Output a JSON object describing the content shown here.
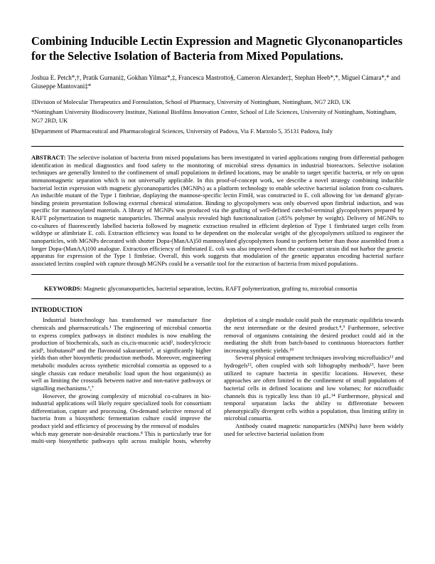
{
  "title": "Combining Inducible Lectin Expression and Magnetic Glyconanoparticles for the Selective Isolation of Bacteria from Mixed Populations.",
  "authors": "Joshua E. Petch*,†, Pratik Gurnani‡, Gokhan Yilmaz*,‡, Francesca Mastrotto§, Cameron Alexander‡, Stephan Heeb*,*, Miguel Cámara*,* and Giuseppe Mantovani‡*",
  "affiliations": [
    "‡Division of Molecular Therapeutics and Formulation, School of Pharmacy, University of Nottingham, Nottingham, NG7 2RD, UK",
    "*Nottingham University Biodiscovery Institute, National Biofilms Innovation Centre, School of Life Sciences, University of Nottingham, Nottingham, NG7 2RD, UK",
    "§Department of Pharmaceutical and Pharmacological Sciences, University of Padova, Via F. Marzolo 5, 35131 Padova, Italy"
  ],
  "abstract_label": "ABSTRACT:",
  "abstract": "The selective isolation of bacteria from mixed populations has been investigated in varied applications ranging from differential pathogen identification in medical diagnostics and food safety to the monitoring of microbial stress dynamics in industrial bioreactors. Selective isolation techniques are generally limited to the confinement of small populations in defined locations, may be unable to target specific bacteria, or rely on upon immunomagnetic separation which is not universally applicable. In this proof-of-concept work, we describe a novel strategy combining inducible bacterial lectin expression with magnetic glyconanoparticles (MGNPs) as a platform technology to enable selective bacterial isolation from co-cultures. An inducible mutant of the Type 1 fimbriae, displaying the mannose-specific lectin FimH, was constructed in E. coli allowing for 'on demand' glycan-binding protein presentation following external chemical stimulation. Binding to glycopolymers was only observed upon fimbrial induction, and was specific for mannosylated materials. A library of MGNPs was produced via the grafting of well-defined catechol-terminal glycopolymers prepared by RAFT polymerization to magnetic nanoparticles. Thermal analysis revealed high functionalization (≥85% polymer by weight). Delivery of MGNPs to co-cultures of fluorescently labelled bacteria followed by magnetic extraction resulted in efficient depletion of Type 1 fimbriated target cells from wildtype or afimbriate E. coli. Extraction efficiency was found to be dependent on the molecular weight of the glycopolymers utilized to engineer the nanoparticles, with MGNPs decorated with shorter Dopa-(ManAA)50 mannosylated glycopolymers found to perform better than those assembled from a longer Dopa-(ManAA)100 analogue. Extraction efficiency of fimbriated E. coli was also improved when the counterpart strain did not harbor the genetic apparatus for expression of the Type 1 fimbriae. Overall, this work suggests that modulation of the genetic apparatus encoding bacterial surface associated lectins coupled with capture through MGNPs could be a versatile tool for the extraction of bacteria from mixed populations.",
  "keywords_label": "KEYWORDS:",
  "keywords": "Magnetic glyconanoparticles, bacterial separation, lectins, RAFT polymerization, grafting to, microbial consortia",
  "intro_head": "INTRODUCTION",
  "intro_p1": "Industrial biotechnology has transformed we manufacture fine chemicals and pharmaceuticals.¹ The engineering of microbial consortia to express complex pathways in distinct modules is now enabling the production of biochemicals, such as cis,cis-muconic acid², isodecylcrocic acid³, biobutanol⁴ and the flavonoid sakuranetin⁵, at significantly higher yields than other biosynthetic production methods. Moreover, engineering metabolic modules across synthetic microbial consortia as opposed to a single chassis can reduce metabolic load upon the host organism(s) as well as limiting the crosstalk between native and non-native pathways or signalling mechanisms.⁶,⁷",
  "intro_p2": "However, the growing complexity of microbial co-cultures in bio-industrial applications will likely require specialized tools for consortium differentiation, capture and processing. On-demand selective removal of bacteria from a biosynthetic fermentation culture could improve the product yield and efficiency of processing by the removal of modules",
  "intro_p3": "which may generate non-desirable reactions.⁸ This is particularly true for multi-step biosynthetic pathways split across multiple hosts, whereby depletion of a single module could push the enzymatic equilibria towards the next intermediate or the desired product.⁸,⁹ Furthermore, selective removal of organisms containing the desired product could aid in the mediating the shift from batch-based to continuous bioreactors further increasing synthetic yields.¹⁰",
  "intro_p4": "Several physical entrapment techniques involving microfluidics¹¹ and hydrogels¹², often coupled with soft lithography methods¹³, have been utilized to capture bacteria in specific locations. However, these approaches are often limited to the confinement of small populations of bacterial cells in defined locations and low volumes; for microfluidic channels this is typically less than 10 μL.¹⁴ Furthermore, physical and temporal separation lacks the ability to differentiate between phenotypically divergent cells within a population, thus limiting utility in microbial consortia.",
  "intro_p5": "Antibody coated magnetic nanoparticles (MNPs) have been widely used for selective bacterial isolation from"
}
